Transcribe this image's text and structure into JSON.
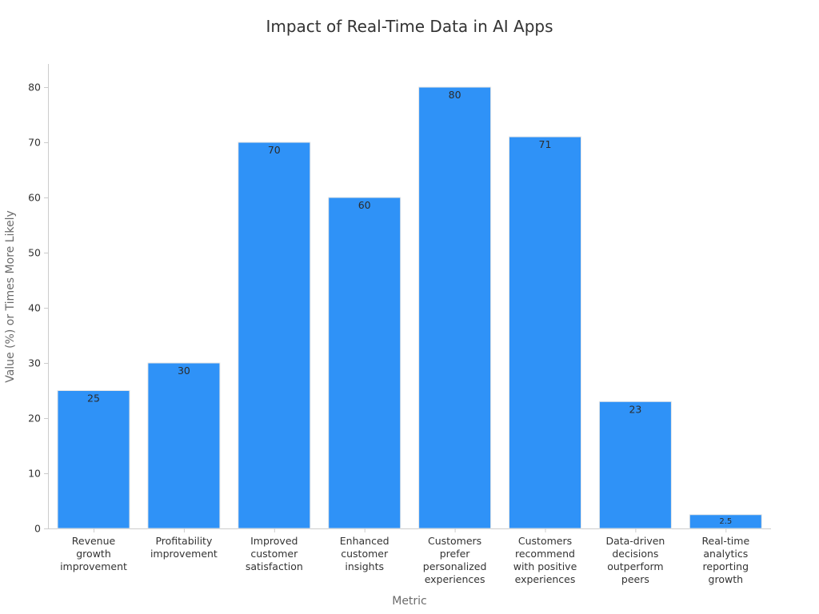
{
  "chart_data": {
    "type": "bar",
    "title": "Impact of Real-Time Data in AI Apps",
    "xlabel": "Metric",
    "ylabel": "Value (%) or Times More Likely",
    "ylim": [
      0,
      84
    ],
    "yticks": [
      0,
      10,
      20,
      30,
      40,
      50,
      60,
      70,
      80
    ],
    "grid": false,
    "bar_color": "#2f92f7",
    "categories": [
      [
        "Revenue",
        "growth",
        "improvement"
      ],
      [
        "Profitability",
        "improvement"
      ],
      [
        "Improved",
        "customer",
        "satisfaction"
      ],
      [
        "Enhanced",
        "customer",
        "insights"
      ],
      [
        "Customers",
        "prefer",
        "personalized",
        "experiences"
      ],
      [
        "Customers",
        "recommend",
        "with positive",
        "experiences"
      ],
      [
        "Data-driven",
        "decisions",
        "outperform",
        "peers"
      ],
      [
        "Real-time",
        "analytics",
        "reporting",
        "growth"
      ]
    ],
    "values": [
      25,
      30,
      70,
      60,
      80,
      71,
      23,
      2.5
    ],
    "value_labels": [
      "25",
      "30",
      "70",
      "60",
      "80",
      "71",
      "23",
      "2.5"
    ]
  }
}
